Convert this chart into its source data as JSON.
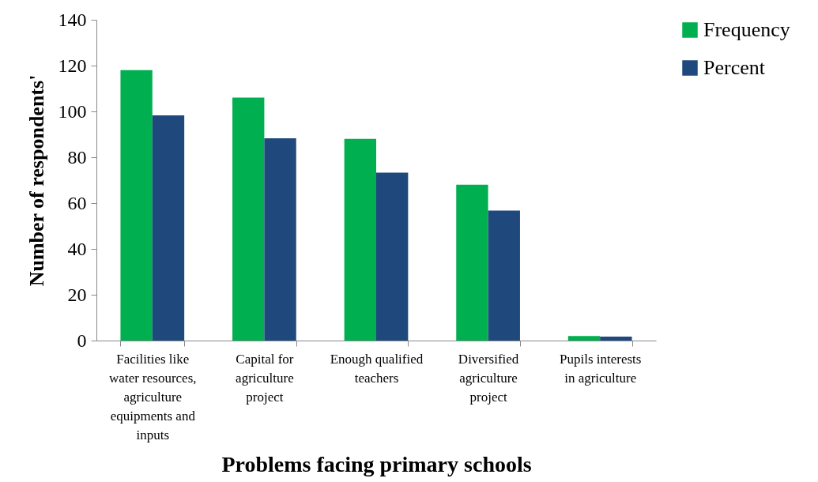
{
  "chart_data": {
    "type": "bar",
    "xlabel": "Problems facing primary schools",
    "ylabel": "Number of respondents'",
    "categories": [
      "Facilities like water resources, agriculture equipments and inputs",
      "Capital for agriculture project",
      "Enough qualified teachers",
      "Diversified agriculture project",
      "Pupils interests in agriculture"
    ],
    "series": [
      {
        "name": "Frequency",
        "color": "#00b050",
        "values": [
          118,
          106,
          88,
          68,
          2
        ]
      },
      {
        "name": "Percent",
        "color": "#1f497d",
        "values": [
          98.3,
          88.3,
          73.3,
          56.7,
          1.7
        ]
      }
    ],
    "ylim": [
      0,
      140
    ],
    "yticks": [
      0,
      20,
      40,
      60,
      80,
      100,
      120,
      140
    ],
    "legend": "right",
    "grid": false
  }
}
